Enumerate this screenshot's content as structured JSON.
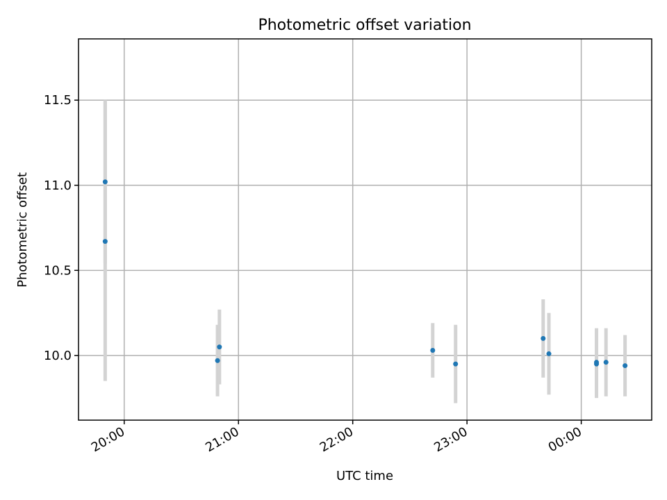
{
  "chart_data": {
    "type": "scatter",
    "title": "Photometric offset variation",
    "xlabel": "UTC time",
    "ylabel": "Photometric offset",
    "x_ticks": [
      "20:00",
      "21:00",
      "22:00",
      "23:00",
      "00:00"
    ],
    "y_ticks": [
      "10.0",
      "10.5",
      "11.0",
      "11.5"
    ],
    "xlim": [
      "19:36",
      "00:37"
    ],
    "ylim": [
      9.62,
      11.86
    ],
    "grid": true,
    "points": [
      {
        "x": "19:50",
        "y": 11.02,
        "err": 0.48
      },
      {
        "x": "19:50",
        "y": 10.67,
        "err": 0.82
      },
      {
        "x": "20:49",
        "y": 9.97,
        "err": 0.21
      },
      {
        "x": "20:50",
        "y": 10.05,
        "err": 0.22
      },
      {
        "x": "22:42",
        "y": 10.03,
        "err": 0.16
      },
      {
        "x": "22:54",
        "y": 9.95,
        "err": 0.23
      },
      {
        "x": "23:40",
        "y": 10.1,
        "err": 0.23
      },
      {
        "x": "23:43",
        "y": 10.01,
        "err": 0.24
      },
      {
        "x": "00:08",
        "y": 9.96,
        "err": 0.2
      },
      {
        "x": "00:08",
        "y": 9.95,
        "err": 0.2
      },
      {
        "x": "00:13",
        "y": 9.96,
        "err": 0.2
      },
      {
        "x": "00:23",
        "y": 9.94,
        "err": 0.18
      }
    ]
  }
}
